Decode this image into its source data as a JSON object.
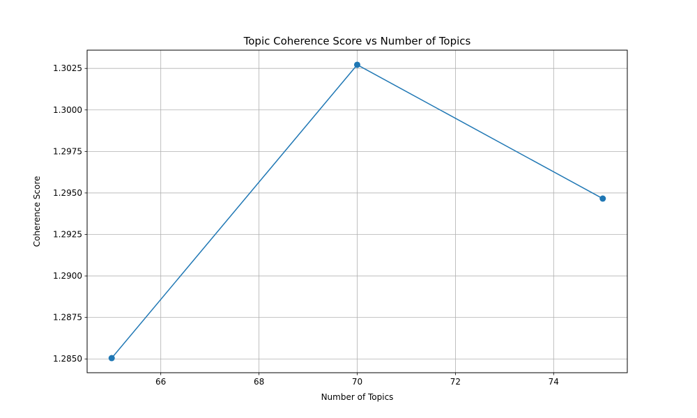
{
  "chart_data": {
    "type": "line",
    "title": "Topic Coherence Score vs Number of Topics",
    "xlabel": "Number of Topics",
    "ylabel": "Coherence Score",
    "x": [
      65,
      70,
      75
    ],
    "series": [
      {
        "values": [
          1.28505,
          1.30272,
          1.29466
        ]
      }
    ],
    "xlim": [
      64.5,
      75.5
    ],
    "ylim": [
      1.28417,
      1.3036
    ],
    "xticks": [
      66,
      68,
      70,
      72,
      74
    ],
    "yticks": [
      1.285,
      1.2875,
      1.29,
      1.2925,
      1.295,
      1.2975,
      1.3,
      1.3025
    ],
    "xtick_labels": [
      "66",
      "68",
      "70",
      "72",
      "74"
    ],
    "ytick_labels": [
      "1.2850",
      "1.2875",
      "1.2900",
      "1.2925",
      "1.2950",
      "1.2975",
      "1.3000",
      "1.3025"
    ],
    "grid": true,
    "marker": "circle",
    "line_color": "#1f77b4"
  }
}
